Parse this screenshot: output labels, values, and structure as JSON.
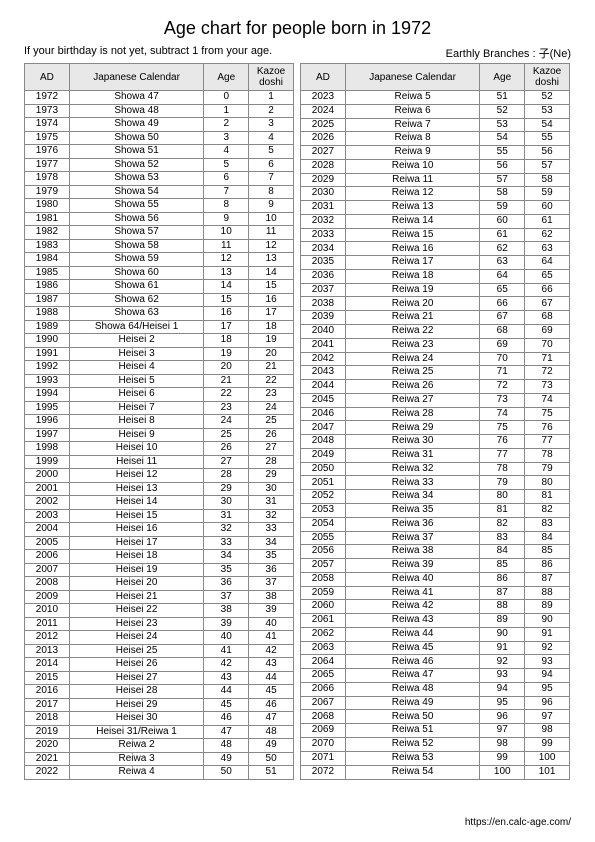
{
  "title": "Age chart for people born in 1972",
  "subtitle_left": "If your birthday is not yet, subtract 1 from your age.",
  "subtitle_right": "Earthly Branches : 子(Ne)",
  "footer": "https://en.calc-age.com/",
  "headers": {
    "ad": "AD",
    "jp": "Japanese Calendar",
    "age": "Age",
    "kazoe": "Kazoe doshi"
  },
  "left_rows": [
    {
      "ad": "1972",
      "jp": "Showa 47",
      "age": "0",
      "kz": "1"
    },
    {
      "ad": "1973",
      "jp": "Showa 48",
      "age": "1",
      "kz": "2"
    },
    {
      "ad": "1974",
      "jp": "Showa 49",
      "age": "2",
      "kz": "3"
    },
    {
      "ad": "1975",
      "jp": "Showa 50",
      "age": "3",
      "kz": "4"
    },
    {
      "ad": "1976",
      "jp": "Showa 51",
      "age": "4",
      "kz": "5"
    },
    {
      "ad": "1977",
      "jp": "Showa 52",
      "age": "5",
      "kz": "6"
    },
    {
      "ad": "1978",
      "jp": "Showa 53",
      "age": "6",
      "kz": "7"
    },
    {
      "ad": "1979",
      "jp": "Showa 54",
      "age": "7",
      "kz": "8"
    },
    {
      "ad": "1980",
      "jp": "Showa 55",
      "age": "8",
      "kz": "9"
    },
    {
      "ad": "1981",
      "jp": "Showa 56",
      "age": "9",
      "kz": "10"
    },
    {
      "ad": "1982",
      "jp": "Showa 57",
      "age": "10",
      "kz": "11"
    },
    {
      "ad": "1983",
      "jp": "Showa 58",
      "age": "11",
      "kz": "12"
    },
    {
      "ad": "1984",
      "jp": "Showa 59",
      "age": "12",
      "kz": "13"
    },
    {
      "ad": "1985",
      "jp": "Showa 60",
      "age": "13",
      "kz": "14"
    },
    {
      "ad": "1986",
      "jp": "Showa 61",
      "age": "14",
      "kz": "15"
    },
    {
      "ad": "1987",
      "jp": "Showa 62",
      "age": "15",
      "kz": "16"
    },
    {
      "ad": "1988",
      "jp": "Showa 63",
      "age": "16",
      "kz": "17"
    },
    {
      "ad": "1989",
      "jp": "Showa 64/Heisei 1",
      "age": "17",
      "kz": "18"
    },
    {
      "ad": "1990",
      "jp": "Heisei 2",
      "age": "18",
      "kz": "19"
    },
    {
      "ad": "1991",
      "jp": "Heisei 3",
      "age": "19",
      "kz": "20"
    },
    {
      "ad": "1992",
      "jp": "Heisei 4",
      "age": "20",
      "kz": "21"
    },
    {
      "ad": "1993",
      "jp": "Heisei 5",
      "age": "21",
      "kz": "22"
    },
    {
      "ad": "1994",
      "jp": "Heisei 6",
      "age": "22",
      "kz": "23"
    },
    {
      "ad": "1995",
      "jp": "Heisei 7",
      "age": "23",
      "kz": "24"
    },
    {
      "ad": "1996",
      "jp": "Heisei 8",
      "age": "24",
      "kz": "25"
    },
    {
      "ad": "1997",
      "jp": "Heisei 9",
      "age": "25",
      "kz": "26"
    },
    {
      "ad": "1998",
      "jp": "Heisei 10",
      "age": "26",
      "kz": "27"
    },
    {
      "ad": "1999",
      "jp": "Heisei 11",
      "age": "27",
      "kz": "28"
    },
    {
      "ad": "2000",
      "jp": "Heisei 12",
      "age": "28",
      "kz": "29"
    },
    {
      "ad": "2001",
      "jp": "Heisei 13",
      "age": "29",
      "kz": "30"
    },
    {
      "ad": "2002",
      "jp": "Heisei 14",
      "age": "30",
      "kz": "31"
    },
    {
      "ad": "2003",
      "jp": "Heisei 15",
      "age": "31",
      "kz": "32"
    },
    {
      "ad": "2004",
      "jp": "Heisei 16",
      "age": "32",
      "kz": "33"
    },
    {
      "ad": "2005",
      "jp": "Heisei 17",
      "age": "33",
      "kz": "34"
    },
    {
      "ad": "2006",
      "jp": "Heisei 18",
      "age": "34",
      "kz": "35"
    },
    {
      "ad": "2007",
      "jp": "Heisei 19",
      "age": "35",
      "kz": "36"
    },
    {
      "ad": "2008",
      "jp": "Heisei 20",
      "age": "36",
      "kz": "37"
    },
    {
      "ad": "2009",
      "jp": "Heisei 21",
      "age": "37",
      "kz": "38"
    },
    {
      "ad": "2010",
      "jp": "Heisei 22",
      "age": "38",
      "kz": "39"
    },
    {
      "ad": "2011",
      "jp": "Heisei 23",
      "age": "39",
      "kz": "40"
    },
    {
      "ad": "2012",
      "jp": "Heisei 24",
      "age": "40",
      "kz": "41"
    },
    {
      "ad": "2013",
      "jp": "Heisei 25",
      "age": "41",
      "kz": "42"
    },
    {
      "ad": "2014",
      "jp": "Heisei 26",
      "age": "42",
      "kz": "43"
    },
    {
      "ad": "2015",
      "jp": "Heisei 27",
      "age": "43",
      "kz": "44"
    },
    {
      "ad": "2016",
      "jp": "Heisei 28",
      "age": "44",
      "kz": "45"
    },
    {
      "ad": "2017",
      "jp": "Heisei 29",
      "age": "45",
      "kz": "46"
    },
    {
      "ad": "2018",
      "jp": "Heisei 30",
      "age": "46",
      "kz": "47"
    },
    {
      "ad": "2019",
      "jp": "Heisei 31/Reiwa 1",
      "age": "47",
      "kz": "48"
    },
    {
      "ad": "2020",
      "jp": "Reiwa 2",
      "age": "48",
      "kz": "49"
    },
    {
      "ad": "2021",
      "jp": "Reiwa 3",
      "age": "49",
      "kz": "50"
    },
    {
      "ad": "2022",
      "jp": "Reiwa 4",
      "age": "50",
      "kz": "51"
    }
  ],
  "right_rows": [
    {
      "ad": "2023",
      "jp": "Reiwa 5",
      "age": "51",
      "kz": "52"
    },
    {
      "ad": "2024",
      "jp": "Reiwa 6",
      "age": "52",
      "kz": "53"
    },
    {
      "ad": "2025",
      "jp": "Reiwa 7",
      "age": "53",
      "kz": "54"
    },
    {
      "ad": "2026",
      "jp": "Reiwa 8",
      "age": "54",
      "kz": "55"
    },
    {
      "ad": "2027",
      "jp": "Reiwa 9",
      "age": "55",
      "kz": "56"
    },
    {
      "ad": "2028",
      "jp": "Reiwa 10",
      "age": "56",
      "kz": "57"
    },
    {
      "ad": "2029",
      "jp": "Reiwa 11",
      "age": "57",
      "kz": "58"
    },
    {
      "ad": "2030",
      "jp": "Reiwa 12",
      "age": "58",
      "kz": "59"
    },
    {
      "ad": "2031",
      "jp": "Reiwa 13",
      "age": "59",
      "kz": "60"
    },
    {
      "ad": "2032",
      "jp": "Reiwa 14",
      "age": "60",
      "kz": "61"
    },
    {
      "ad": "2033",
      "jp": "Reiwa 15",
      "age": "61",
      "kz": "62"
    },
    {
      "ad": "2034",
      "jp": "Reiwa 16",
      "age": "62",
      "kz": "63"
    },
    {
      "ad": "2035",
      "jp": "Reiwa 17",
      "age": "63",
      "kz": "64"
    },
    {
      "ad": "2036",
      "jp": "Reiwa 18",
      "age": "64",
      "kz": "65"
    },
    {
      "ad": "2037",
      "jp": "Reiwa 19",
      "age": "65",
      "kz": "66"
    },
    {
      "ad": "2038",
      "jp": "Reiwa 20",
      "age": "66",
      "kz": "67"
    },
    {
      "ad": "2039",
      "jp": "Reiwa 21",
      "age": "67",
      "kz": "68"
    },
    {
      "ad": "2040",
      "jp": "Reiwa 22",
      "age": "68",
      "kz": "69"
    },
    {
      "ad": "2041",
      "jp": "Reiwa 23",
      "age": "69",
      "kz": "70"
    },
    {
      "ad": "2042",
      "jp": "Reiwa 24",
      "age": "70",
      "kz": "71"
    },
    {
      "ad": "2043",
      "jp": "Reiwa 25",
      "age": "71",
      "kz": "72"
    },
    {
      "ad": "2044",
      "jp": "Reiwa 26",
      "age": "72",
      "kz": "73"
    },
    {
      "ad": "2045",
      "jp": "Reiwa 27",
      "age": "73",
      "kz": "74"
    },
    {
      "ad": "2046",
      "jp": "Reiwa 28",
      "age": "74",
      "kz": "75"
    },
    {
      "ad": "2047",
      "jp": "Reiwa 29",
      "age": "75",
      "kz": "76"
    },
    {
      "ad": "2048",
      "jp": "Reiwa 30",
      "age": "76",
      "kz": "77"
    },
    {
      "ad": "2049",
      "jp": "Reiwa 31",
      "age": "77",
      "kz": "78"
    },
    {
      "ad": "2050",
      "jp": "Reiwa 32",
      "age": "78",
      "kz": "79"
    },
    {
      "ad": "2051",
      "jp": "Reiwa 33",
      "age": "79",
      "kz": "80"
    },
    {
      "ad": "2052",
      "jp": "Reiwa 34",
      "age": "80",
      "kz": "81"
    },
    {
      "ad": "2053",
      "jp": "Reiwa 35",
      "age": "81",
      "kz": "82"
    },
    {
      "ad": "2054",
      "jp": "Reiwa 36",
      "age": "82",
      "kz": "83"
    },
    {
      "ad": "2055",
      "jp": "Reiwa 37",
      "age": "83",
      "kz": "84"
    },
    {
      "ad": "2056",
      "jp": "Reiwa 38",
      "age": "84",
      "kz": "85"
    },
    {
      "ad": "2057",
      "jp": "Reiwa 39",
      "age": "85",
      "kz": "86"
    },
    {
      "ad": "2058",
      "jp": "Reiwa 40",
      "age": "86",
      "kz": "87"
    },
    {
      "ad": "2059",
      "jp": "Reiwa 41",
      "age": "87",
      "kz": "88"
    },
    {
      "ad": "2060",
      "jp": "Reiwa 42",
      "age": "88",
      "kz": "89"
    },
    {
      "ad": "2061",
      "jp": "Reiwa 43",
      "age": "89",
      "kz": "90"
    },
    {
      "ad": "2062",
      "jp": "Reiwa 44",
      "age": "90",
      "kz": "91"
    },
    {
      "ad": "2063",
      "jp": "Reiwa 45",
      "age": "91",
      "kz": "92"
    },
    {
      "ad": "2064",
      "jp": "Reiwa 46",
      "age": "92",
      "kz": "93"
    },
    {
      "ad": "2065",
      "jp": "Reiwa 47",
      "age": "93",
      "kz": "94"
    },
    {
      "ad": "2066",
      "jp": "Reiwa 48",
      "age": "94",
      "kz": "95"
    },
    {
      "ad": "2067",
      "jp": "Reiwa 49",
      "age": "95",
      "kz": "96"
    },
    {
      "ad": "2068",
      "jp": "Reiwa 50",
      "age": "96",
      "kz": "97"
    },
    {
      "ad": "2069",
      "jp": "Reiwa 51",
      "age": "97",
      "kz": "98"
    },
    {
      "ad": "2070",
      "jp": "Reiwa 52",
      "age": "98",
      "kz": "99"
    },
    {
      "ad": "2071",
      "jp": "Reiwa 53",
      "age": "99",
      "kz": "100"
    },
    {
      "ad": "2072",
      "jp": "Reiwa 54",
      "age": "100",
      "kz": "101"
    }
  ]
}
